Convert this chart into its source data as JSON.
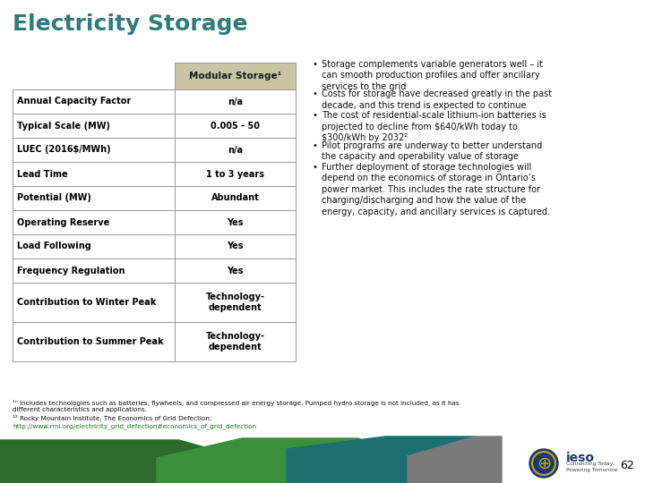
{
  "title": "Electricity Storage",
  "title_color": "#2e7d7a",
  "bg_color": "#ffffff",
  "table_header": "Modular Storage¹",
  "table_header_bg": "#c9c5a3",
  "table_rows": [
    [
      "Annual Capacity Factor",
      "n/a"
    ],
    [
      "Typical Scale (MW)",
      "0.005 - 50"
    ],
    [
      "LUEC (2016$/MWh)",
      "n/a"
    ],
    [
      "Lead Time",
      "1 to 3 years"
    ],
    [
      "Potential (MW)",
      "Abundant"
    ],
    [
      "Operating Reserve",
      "Yes"
    ],
    [
      "Load Following",
      "Yes"
    ],
    [
      "Frequency Regulation",
      "Yes"
    ],
    [
      "Contribution to Winter Peak",
      "Technology-\ndependent"
    ],
    [
      "Contribution to Summer Peak",
      "Technology-\ndependent"
    ]
  ],
  "bullet_points": [
    "Storage complements variable generators well – it\ncan smooth production profiles and offer ancillary\nservices to the grid",
    "Costs for storage have decreased greatly in the past\ndecade, and this trend is expected to continue",
    "The cost of residential-scale lithium-ion batteries is\nprojected to decline from $640/kWh today to\n$300/kWh by 2032²",
    "Pilot programs are underway to better understand\nthe capacity and operability value of storage",
    "Further deployment of storage technologies will\ndepend on the economics of storage in Ontario’s\npower market. This includes the rate structure for\ncharging/discharging and how the value of the\nenergy, capacity, and ancillary services is captured."
  ],
  "footnote1": "¹ⁿ Includes technologies such as batteries, flywheels, and compressed air energy storage. Pumped hydro storage is not included, as it has",
  "footnote1b": "different characteristics and applications.",
  "footnote2": "¹² Rocky Mountain Institute, The Economics of Grid Defection:",
  "footnote_link": "http://www.rmi.org/electricity_grid_defection#economics_of_grid_defection",
  "page_number": "62"
}
